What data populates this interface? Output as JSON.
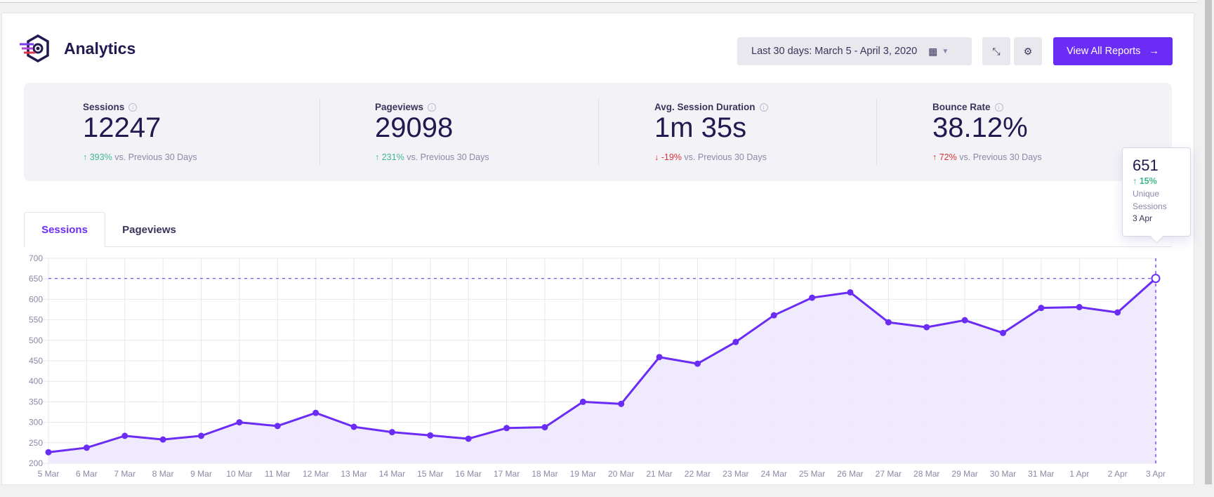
{
  "header": {
    "title": "Analytics",
    "date_range": "Last 30 days: March 5 - April 3, 2020",
    "view_all_label": "View All Reports",
    "view_all_arrow": "→",
    "calendar_icon": "calendar-icon",
    "collapse_icon": "collapse-icon",
    "settings_icon": "gear-icon"
  },
  "colors": {
    "accent": "#6b2cf5",
    "positive": "#3fb98a",
    "negative": "#d8333a",
    "fill": "#ede8fc"
  },
  "stats": [
    {
      "label": "Sessions",
      "value": "12247",
      "arrow": "↑",
      "change": "393%",
      "suffix": "vs. Previous 30 Days",
      "trend": "up-good"
    },
    {
      "label": "Pageviews",
      "value": "29098",
      "arrow": "↑",
      "change": "231%",
      "suffix": "vs. Previous 30 Days",
      "trend": "up-good"
    },
    {
      "label": "Avg. Session Duration",
      "value": "1m 35s",
      "arrow": "↓",
      "change": "-19%",
      "suffix": "vs. Previous 30 Days",
      "trend": "down-bad"
    },
    {
      "label": "Bounce Rate",
      "value": "38.12%",
      "arrow": "↑",
      "change": "72%",
      "suffix": "vs. Previous 30 Days",
      "trend": "up-bad"
    }
  ],
  "tabs": [
    {
      "label": "Sessions",
      "active": true
    },
    {
      "label": "Pageviews",
      "active": false
    }
  ],
  "tooltip": {
    "value": "651",
    "change": "↑ 15%",
    "label_line1": "Unique",
    "label_line2": "Sessions",
    "date": "3 Apr"
  },
  "chart_data": {
    "type": "area",
    "ylim": [
      200,
      700
    ],
    "yticks": [
      "200",
      "250",
      "300",
      "350",
      "400",
      "450",
      "500",
      "550",
      "600",
      "650",
      "700"
    ],
    "grid": true,
    "categories": [
      "5 Mar",
      "6 Mar",
      "7 Mar",
      "8 Mar",
      "9 Mar",
      "10 Mar",
      "11 Mar",
      "12 Mar",
      "13 Mar",
      "14 Mar",
      "15 Mar",
      "16 Mar",
      "17 Mar",
      "18 Mar",
      "19 Mar",
      "20 Mar",
      "21 Mar",
      "22 Mar",
      "23 Mar",
      "24 Mar",
      "25 Mar",
      "26 Mar",
      "27 Mar",
      "28 Mar",
      "29 Mar",
      "30 Mar",
      "31 Mar",
      "1 Apr",
      "2 Apr",
      "3 Apr"
    ],
    "values": [
      227,
      238,
      267,
      258,
      267,
      300,
      291,
      323,
      289,
      276,
      268,
      260,
      286,
      288,
      350,
      345,
      459,
      443,
      496,
      561,
      604,
      617,
      544,
      532,
      549,
      518,
      579,
      581,
      568,
      651
    ],
    "highlight_index": 29
  }
}
